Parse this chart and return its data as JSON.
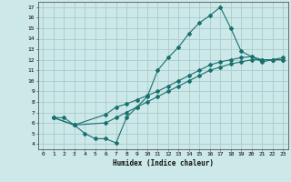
{
  "title": "",
  "xlabel": "Humidex (Indice chaleur)",
  "bg_color": "#cce8e8",
  "grid_color": "#aacccc",
  "line_color": "#1a7070",
  "xlim": [
    -0.5,
    23.5
  ],
  "ylim": [
    3.5,
    17.5
  ],
  "xticks": [
    0,
    1,
    2,
    3,
    4,
    5,
    6,
    7,
    8,
    9,
    10,
    11,
    12,
    13,
    14,
    15,
    16,
    17,
    18,
    19,
    20,
    21,
    22,
    23
  ],
  "yticks": [
    4,
    5,
    6,
    7,
    8,
    9,
    10,
    11,
    12,
    13,
    14,
    15,
    16,
    17
  ],
  "line1_x": [
    1,
    2,
    3,
    4,
    5,
    6,
    7,
    8,
    9,
    10,
    11,
    12,
    13,
    14,
    15,
    16,
    17,
    18,
    19,
    21,
    22,
    23
  ],
  "line1_y": [
    6.5,
    6.5,
    5.8,
    5.0,
    4.5,
    4.5,
    4.1,
    6.5,
    7.5,
    8.5,
    11.0,
    12.2,
    13.2,
    14.5,
    15.5,
    16.2,
    17.0,
    15.0,
    12.8,
    11.8,
    12.0,
    12.0
  ],
  "line2_x": [
    1,
    3,
    6,
    7,
    8,
    9,
    10,
    11,
    12,
    13,
    14,
    15,
    16,
    17,
    18,
    19,
    20,
    21,
    22,
    23
  ],
  "line2_y": [
    6.5,
    5.8,
    6.8,
    7.5,
    7.8,
    8.2,
    8.6,
    9.0,
    9.5,
    10.0,
    10.5,
    11.0,
    11.5,
    11.8,
    12.0,
    12.2,
    12.3,
    12.0,
    12.0,
    12.2
  ],
  "line3_x": [
    1,
    3,
    6,
    7,
    8,
    9,
    10,
    11,
    12,
    13,
    14,
    15,
    16,
    17,
    18,
    19,
    20,
    21,
    22,
    23
  ],
  "line3_y": [
    6.5,
    5.8,
    6.0,
    6.5,
    7.0,
    7.5,
    8.0,
    8.5,
    9.0,
    9.5,
    10.0,
    10.5,
    11.0,
    11.3,
    11.6,
    11.8,
    12.0,
    12.0,
    12.0,
    12.0
  ]
}
